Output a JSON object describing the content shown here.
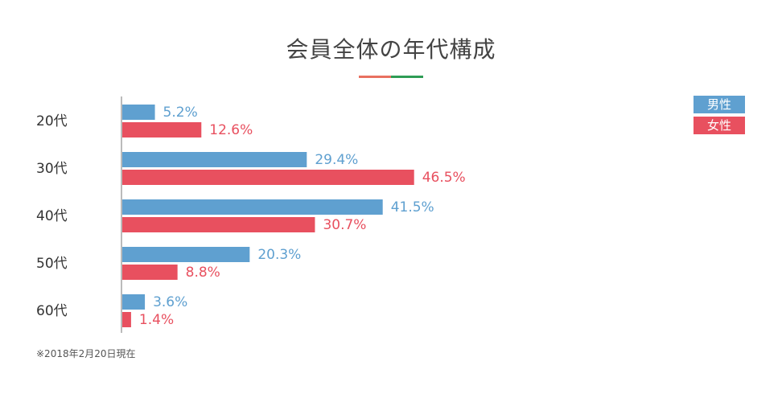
{
  "colors": {
    "male": "#5fa0d0",
    "female": "#e8505f",
    "underline_left": "#e87060",
    "underline_right": "#2e9c55",
    "axis": "#bbbbbb"
  },
  "footnote": "※2018年2月20日現在",
  "chart_data": {
    "type": "bar",
    "orientation": "horizontal",
    "title": "会員全体の年代構成",
    "categories": [
      "20代",
      "30代",
      "40代",
      "50代",
      "60代"
    ],
    "series": [
      {
        "name": "男性",
        "values": [
          5.2,
          29.4,
          41.5,
          20.3,
          3.6
        ],
        "labels": [
          "5.2%",
          "29.4%",
          "41.5%",
          "20.3%",
          "3.6%"
        ]
      },
      {
        "name": "女性",
        "values": [
          12.6,
          46.5,
          30.7,
          8.8,
          1.4
        ],
        "labels": [
          "12.6%",
          "46.5%",
          "30.7%",
          "8.8%",
          "1.4%"
        ]
      }
    ],
    "unit": "%",
    "legend_position": "top-right",
    "grid": false
  }
}
